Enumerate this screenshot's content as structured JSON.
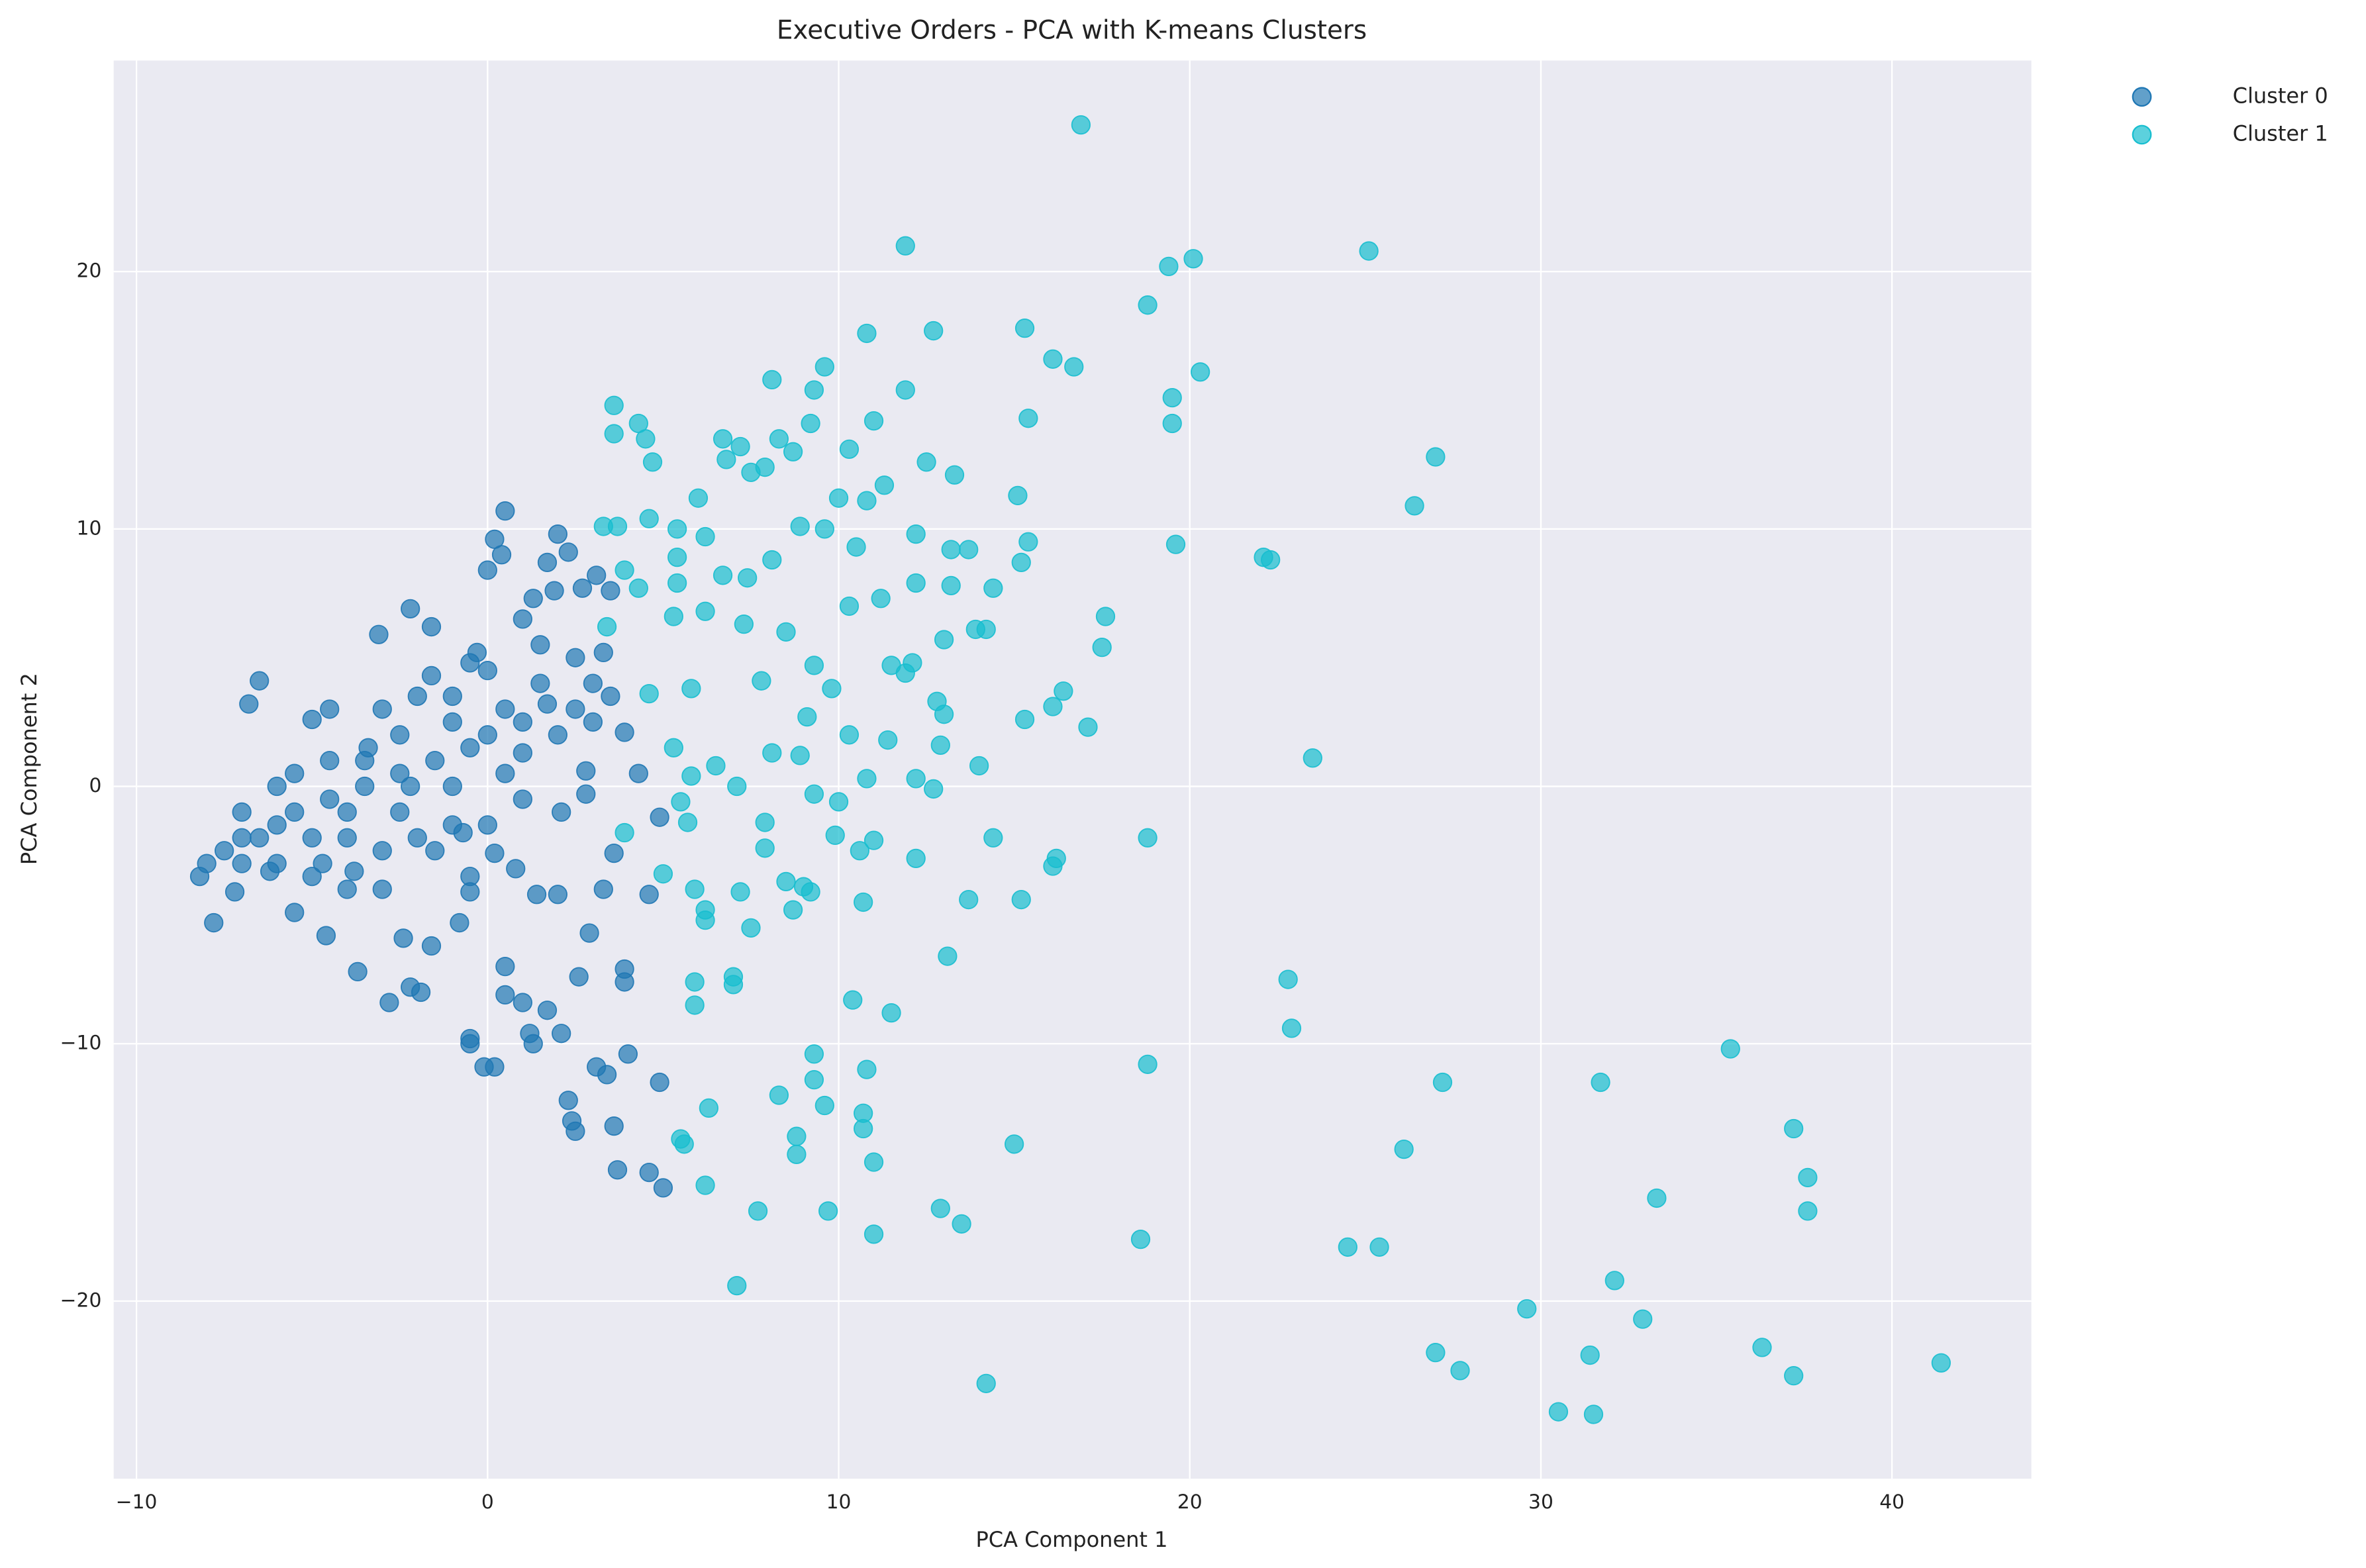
{
  "chart_data": {
    "type": "scatter",
    "title": "Executive Orders - PCA with K-means Clusters",
    "x_label": "PCA Component 1",
    "y_label": "PCA Component 2",
    "xlim": [
      -10.65,
      43.97
    ],
    "ylim": [
      -26.9,
      28.2
    ],
    "xticks": [
      {
        "value": -10,
        "label": "−10"
      },
      0,
      10,
      20,
      30,
      40
    ],
    "yticks": [
      {
        "value": -20,
        "label": "−20"
      },
      {
        "value": -10,
        "label": "−10"
      },
      0,
      10,
      20
    ],
    "grid": true,
    "legend": "outside-upper-right",
    "series": [
      {
        "name": "Cluster 0",
        "color": "#1f77b4",
        "x": [
          -6.5,
          -6.8,
          -3.1,
          -2.2,
          0.5,
          0.2,
          0.4,
          0,
          1.7,
          2,
          -1.6,
          -0.3,
          1.9,
          1.3,
          2.3,
          3.1,
          2.7,
          3.5,
          -7.8,
          -7.2,
          -6.2,
          -5.5,
          -4.6,
          -3.7,
          -2.8,
          -2.2,
          -1.9,
          -1.6,
          -2.4,
          -0.8,
          -0.5,
          -0.5,
          -0.1,
          0.2,
          0.5,
          0.5,
          1,
          1.2,
          1.3,
          1.7,
          2.1,
          2.6,
          2.3,
          2.4,
          2.5,
          3.1,
          3.4,
          3.6,
          4,
          3.7,
          4.6,
          5,
          4.9,
          3.9,
          3.9,
          2.9,
          4.6,
          4.9,
          3.3,
          1.4,
          2,
          3.6,
          0.2,
          -4.5,
          -5,
          -3.4,
          -2.5,
          -1.6,
          -1,
          0.5,
          1,
          2,
          3,
          3.9,
          4.3,
          2.8,
          2.1,
          1,
          0,
          -1,
          -2,
          -3,
          -4,
          -5,
          -6,
          -7,
          -8,
          -7.5,
          -6.5,
          -5.5,
          -4.5,
          -3.5,
          -2.5,
          -1.5,
          -0.5,
          0.5,
          -5,
          -4,
          -3,
          -6,
          -7,
          -5.5,
          -4.5,
          -3.5,
          -2.5,
          -1.5,
          -0.5,
          0,
          -0.5,
          1.5,
          2.5,
          3,
          3.5,
          1,
          1.5,
          -3,
          -2,
          -1,
          0,
          1,
          -4,
          -6,
          -7,
          -8.2,
          -4.7,
          -3.8,
          -2.2,
          -1,
          2.5,
          3.3,
          -0.5,
          -0.7,
          1.7,
          2.8,
          0.8
        ],
        "values": [
          4.1,
          3.2,
          5.9,
          6.9,
          10.7,
          9.6,
          9,
          8.4,
          8.7,
          9.8,
          6.2,
          5.2,
          7.6,
          7.3,
          9.1,
          8.2,
          7.7,
          7.6,
          -5.3,
          -4.1,
          -3.3,
          -4.9,
          -5.8,
          -7.2,
          -8.4,
          -7.8,
          -8,
          -6.2,
          -5.9,
          -5.3,
          -9.8,
          -10,
          -10.9,
          -10.9,
          -8.1,
          -7,
          -8.4,
          -9.6,
          -10,
          -8.7,
          -9.6,
          -7.4,
          -12.2,
          -13,
          -13.4,
          -10.9,
          -11.2,
          -13.2,
          -10.4,
          -14.9,
          -15,
          -15.6,
          -11.5,
          -7.1,
          -7.6,
          -5.7,
          -4.2,
          -1.2,
          -4,
          -4.2,
          -4.2,
          -2.6,
          -2.6,
          3,
          2.6,
          1.5,
          2,
          4.3,
          3.5,
          3,
          1.3,
          2,
          2.5,
          2.1,
          0.5,
          -0.3,
          -1,
          -0.5,
          -1.5,
          -1.5,
          -2,
          -2.5,
          -2,
          -2,
          -1.5,
          -1,
          -3,
          -2.5,
          -2,
          -1,
          -0.5,
          0,
          0.5,
          1,
          1.5,
          0.5,
          -3.5,
          -4,
          -4,
          -3,
          -3,
          0.5,
          1,
          1,
          -1,
          -2.5,
          -3.5,
          4.5,
          4.8,
          5.5,
          5,
          4,
          3.5,
          6.5,
          4,
          3,
          3.5,
          2.5,
          2,
          2.5,
          -1,
          0,
          -2,
          -3.5,
          -3,
          -3.3,
          0,
          0,
          3,
          5.2,
          -4.1,
          -1.8,
          3.2,
          0.6,
          -3.2
        ]
      },
      {
        "name": "Cluster 1",
        "color": "#17becf",
        "x": [
          16.9,
          11.9,
          25.1,
          19.4,
          20.1,
          18.8,
          10.8,
          12.7,
          15.3,
          16.1,
          16.7,
          20.3,
          9.6,
          8.1,
          11.9,
          9.3,
          19.5,
          3.6,
          4.3,
          19.5,
          15.4,
          11,
          9.2,
          3.6,
          4.5,
          6.7,
          7.2,
          8.3,
          10.3,
          8.7,
          27,
          4.7,
          6.8,
          7.5,
          7.9,
          12.5,
          13.3,
          11.3,
          15.1,
          26.4,
          10,
          10.8,
          6,
          3.3,
          4.6,
          3.7,
          8.9,
          9.6,
          5.4,
          6.2,
          12.2,
          15.4,
          19.6,
          13.2,
          13.7,
          22.1,
          22.3,
          10.5,
          15.2,
          7.4,
          8.1,
          5.4,
          3.9,
          6.7,
          12.2,
          13.2,
          14.4,
          4.3,
          5.4,
          10.3,
          11.2,
          17.6,
          13.9,
          14.2,
          5.3,
          6.2,
          7.3,
          8.5,
          13,
          17.5,
          3.4,
          9.3,
          11.5,
          11.9,
          16.4,
          12.1,
          7.8,
          9.8,
          4.6,
          5.8,
          12.8,
          13,
          16.1,
          15.3,
          17.1,
          9.1,
          10.3,
          11.4,
          12.9,
          14,
          23.5,
          8.9,
          8.1,
          5.3,
          6.5,
          7.1,
          5.8,
          9.3,
          10,
          10.8,
          12.2,
          12.7,
          5.5,
          5.7,
          3.9,
          7.9,
          9.9,
          11,
          10.6,
          14.4,
          18.8,
          16.2,
          16.1,
          12.2,
          5,
          7.9,
          8.5,
          9,
          9.2,
          5.9,
          7.2,
          10.7,
          13.7,
          15.2,
          6.2,
          6.2,
          7.5,
          8.7,
          13.1,
          5.9,
          7,
          7,
          5.9,
          22.8,
          10.4,
          11.5,
          22.9,
          35.4,
          9.3,
          10.8,
          18.8,
          27.2,
          31.7,
          9.3,
          8.3,
          6.3,
          9.6,
          10.7,
          10.7,
          37.2,
          8.8,
          5.5,
          5.6,
          15,
          26.1,
          8.8,
          11,
          37.6,
          6.2,
          33.3,
          7.7,
          9.7,
          12.9,
          13.5,
          37.6,
          11,
          18.6,
          24.5,
          25.4,
          32.1,
          7.1,
          29.6,
          32.9,
          36.3,
          27,
          31.4,
          27.7,
          37.2,
          41.4,
          14.2,
          30.5,
          31.5
        ],
        "values": [
          25.7,
          21,
          20.8,
          20.2,
          20.5,
          18.7,
          17.6,
          17.7,
          17.8,
          16.6,
          16.3,
          16.1,
          16.3,
          15.8,
          15.4,
          15.4,
          15.1,
          14.8,
          14.1,
          14.1,
          14.3,
          14.2,
          14.1,
          13.7,
          13.5,
          13.5,
          13.2,
          13.5,
          13.1,
          13,
          12.8,
          12.6,
          12.7,
          12.2,
          12.4,
          12.6,
          12.1,
          11.7,
          11.3,
          10.9,
          11.2,
          11.1,
          11.2,
          10.1,
          10.4,
          10.1,
          10.1,
          10,
          10,
          9.7,
          9.8,
          9.5,
          9.4,
          9.2,
          9.2,
          8.9,
          8.8,
          9.3,
          8.7,
          8.1,
          8.8,
          8.9,
          8.4,
          8.2,
          7.9,
          7.8,
          7.7,
          7.7,
          7.9,
          7,
          7.3,
          6.6,
          6.1,
          6.1,
          6.6,
          6.8,
          6.3,
          6,
          5.7,
          5.4,
          6.2,
          4.7,
          4.7,
          4.4,
          3.7,
          4.8,
          4.1,
          3.8,
          3.6,
          3.8,
          3.3,
          2.8,
          3.1,
          2.6,
          2.3,
          2.7,
          2,
          1.8,
          1.6,
          0.8,
          1.1,
          1.2,
          1.3,
          1.5,
          0.8,
          0,
          0.4,
          -0.3,
          -0.6,
          0.3,
          0.3,
          -0.1,
          -0.6,
          -1.4,
          -1.8,
          -1.4,
          -1.9,
          -2.1,
          -2.5,
          -2,
          -2,
          -2.8,
          -3.1,
          -2.8,
          -3.4,
          -2.4,
          -3.7,
          -3.9,
          -4.1,
          -4,
          -4.1,
          -4.5,
          -4.4,
          -4.4,
          -4.8,
          -5.2,
          -5.5,
          -4.8,
          -6.6,
          -7.6,
          -7.4,
          -7.7,
          -8.5,
          -7.5,
          -8.3,
          -8.8,
          -9.4,
          -10.2,
          -10.4,
          -11,
          -10.8,
          -11.5,
          -11.5,
          -11.4,
          -12,
          -12.5,
          -12.4,
          -12.7,
          -13.3,
          -13.3,
          -13.6,
          -13.7,
          -13.9,
          -13.9,
          -14.1,
          -14.3,
          -14.6,
          -15.2,
          -15.5,
          -16,
          -16.5,
          -16.5,
          -16.4,
          -17,
          -16.5,
          -17.4,
          -17.6,
          -17.9,
          -17.9,
          -19.2,
          -19.4,
          -20.3,
          -20.7,
          -21.8,
          -22,
          -22.1,
          -22.7,
          -22.9,
          -22.4,
          -23.2,
          -24.3,
          -24.4
        ]
      }
    ]
  }
}
